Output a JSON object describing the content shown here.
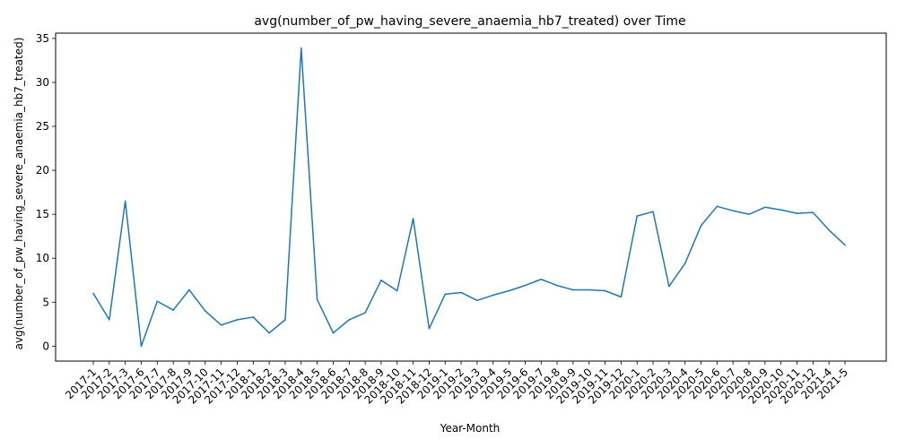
{
  "chart_data": {
    "type": "line",
    "title": "avg(number_of_pw_having_severe_anaemia_hb7_treated) over Time",
    "xlabel": "Year-Month",
    "ylabel": "avg(number_of_pw_having_severe_anaemia_hb7_treated)",
    "ylim": [
      -1.7,
      35.6
    ],
    "yticks": [
      0,
      5,
      10,
      15,
      20,
      25,
      30,
      35
    ],
    "grid": false,
    "line_color": "#1f77b4",
    "categories": [
      "2017-1",
      "2017-2",
      "2017-3",
      "2017-6",
      "2017-7",
      "2017-8",
      "2017-9",
      "2017-10",
      "2017-11",
      "2017-12",
      "2018-1",
      "2018-2",
      "2018-3",
      "2018-4",
      "2018-5",
      "2018-6",
      "2018-7",
      "2018-8",
      "2018-9",
      "2018-10",
      "2018-11",
      "2018-12",
      "2019-1",
      "2019-2",
      "2019-3",
      "2019-4",
      "2019-5",
      "2019-6",
      "2019-7",
      "2019-8",
      "2019-9",
      "2019-10",
      "2019-11",
      "2019-12",
      "2020-1",
      "2020-2",
      "2020-3",
      "2020-4",
      "2020-5",
      "2020-6",
      "2020-7",
      "2020-8",
      "2020-9",
      "2020-10",
      "2020-11",
      "2020-12",
      "2021-4",
      "2021-5"
    ],
    "values": [
      6.0,
      3.0,
      16.5,
      0.0,
      5.1,
      4.1,
      6.4,
      4.0,
      2.4,
      3.0,
      3.3,
      1.5,
      3.0,
      33.9,
      5.3,
      1.5,
      3.0,
      3.8,
      7.5,
      6.3,
      14.5,
      2.0,
      5.9,
      6.1,
      5.2,
      5.8,
      6.3,
      6.9,
      7.6,
      6.9,
      6.4,
      6.4,
      6.3,
      5.6,
      14.8,
      15.3,
      6.8,
      9.4,
      13.7,
      15.9,
      15.4,
      15.0,
      15.8,
      15.5,
      15.1,
      15.2,
      13.2,
      11.5
    ]
  }
}
